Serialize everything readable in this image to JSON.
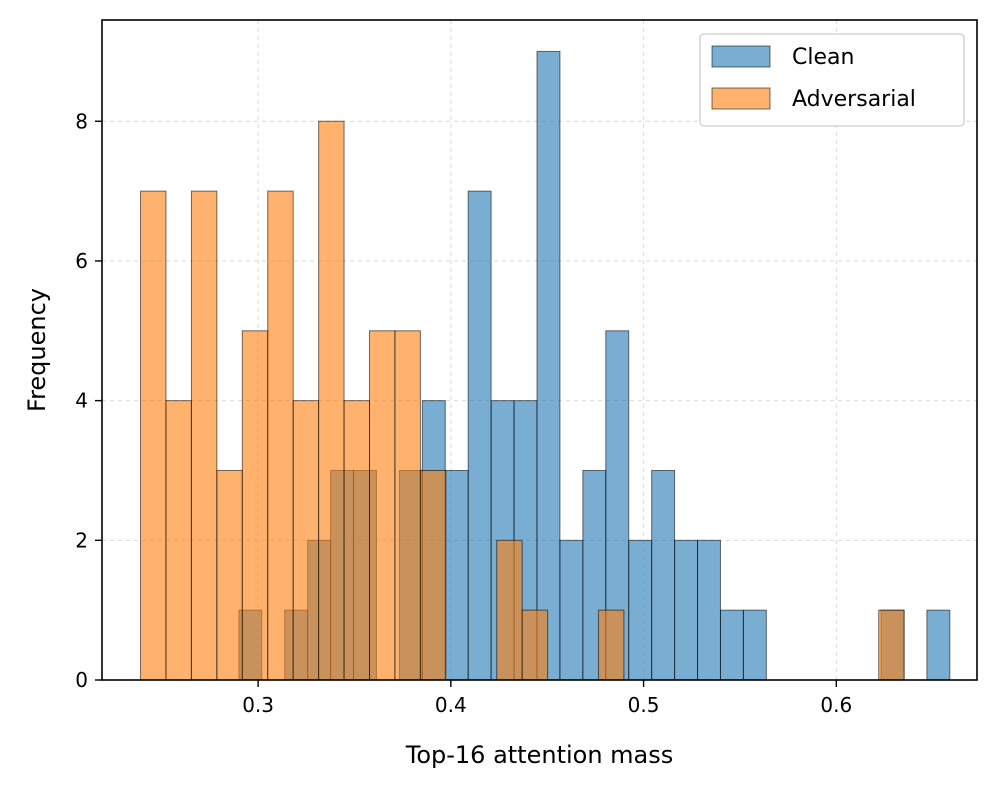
{
  "chart_data": {
    "type": "bar",
    "title": "",
    "xlabel": "Top-16 attention mass",
    "ylabel": "Frequency",
    "xlim": [
      0.219,
      0.673
    ],
    "ylim": [
      0,
      9.45
    ],
    "xticks": [
      0.3,
      0.4,
      0.5,
      0.6
    ],
    "xtick_labels": [
      "0.3",
      "0.4",
      "0.5",
      "0.6"
    ],
    "yticks": [
      0,
      2,
      4,
      6,
      8
    ],
    "ytick_labels": [
      "0",
      "2",
      "4",
      "6",
      "8"
    ],
    "grid": true,
    "legend_position": "top-right",
    "series": [
      {
        "name": "Clean",
        "color": "#1f77b4",
        "bins": [
          {
            "x0": 0.29,
            "x1": 0.3019,
            "count": 1
          },
          {
            "x0": 0.3138,
            "x1": 0.3257,
            "count": 1
          },
          {
            "x0": 0.3257,
            "x1": 0.3376,
            "count": 2
          },
          {
            "x0": 0.3376,
            "x1": 0.3495,
            "count": 3
          },
          {
            "x0": 0.3495,
            "x1": 0.3614,
            "count": 3
          },
          {
            "x0": 0.3733,
            "x1": 0.3852,
            "count": 3
          },
          {
            "x0": 0.3852,
            "x1": 0.3971,
            "count": 4
          },
          {
            "x0": 0.3971,
            "x1": 0.409,
            "count": 3
          },
          {
            "x0": 0.409,
            "x1": 0.4209,
            "count": 7
          },
          {
            "x0": 0.4209,
            "x1": 0.4328,
            "count": 4
          },
          {
            "x0": 0.4328,
            "x1": 0.4447,
            "count": 4
          },
          {
            "x0": 0.4447,
            "x1": 0.4566,
            "count": 9
          },
          {
            "x0": 0.4566,
            "x1": 0.4685,
            "count": 2
          },
          {
            "x0": 0.4685,
            "x1": 0.4804,
            "count": 3
          },
          {
            "x0": 0.4804,
            "x1": 0.4923,
            "count": 5
          },
          {
            "x0": 0.4923,
            "x1": 0.5042,
            "count": 2
          },
          {
            "x0": 0.5042,
            "x1": 0.5161,
            "count": 3
          },
          {
            "x0": 0.5161,
            "x1": 0.528,
            "count": 2
          },
          {
            "x0": 0.528,
            "x1": 0.5399,
            "count": 2
          },
          {
            "x0": 0.5399,
            "x1": 0.5518,
            "count": 1
          },
          {
            "x0": 0.5518,
            "x1": 0.5637,
            "count": 1
          },
          {
            "x0": 0.6232,
            "x1": 0.6351,
            "count": 1
          },
          {
            "x0": 0.647,
            "x1": 0.6589,
            "count": 1
          }
        ]
      },
      {
        "name": "Adversarial",
        "color": "#ff7f0e",
        "bins": [
          {
            "x0": 0.239,
            "x1": 0.2522,
            "count": 7
          },
          {
            "x0": 0.2522,
            "x1": 0.2654,
            "count": 4
          },
          {
            "x0": 0.2654,
            "x1": 0.2786,
            "count": 7
          },
          {
            "x0": 0.2786,
            "x1": 0.2918,
            "count": 3
          },
          {
            "x0": 0.2918,
            "x1": 0.305,
            "count": 5
          },
          {
            "x0": 0.305,
            "x1": 0.3182,
            "count": 7
          },
          {
            "x0": 0.3182,
            "x1": 0.3314,
            "count": 4
          },
          {
            "x0": 0.3314,
            "x1": 0.3446,
            "count": 8
          },
          {
            "x0": 0.3446,
            "x1": 0.3578,
            "count": 4
          },
          {
            "x0": 0.3578,
            "x1": 0.371,
            "count": 5
          },
          {
            "x0": 0.371,
            "x1": 0.3842,
            "count": 5
          },
          {
            "x0": 0.3842,
            "x1": 0.3974,
            "count": 3
          },
          {
            "x0": 0.4238,
            "x1": 0.437,
            "count": 2
          },
          {
            "x0": 0.437,
            "x1": 0.4502,
            "count": 1
          },
          {
            "x0": 0.4766,
            "x1": 0.4898,
            "count": 1
          },
          {
            "x0": 0.622,
            "x1": 0.6352,
            "count": 1
          }
        ]
      }
    ]
  }
}
